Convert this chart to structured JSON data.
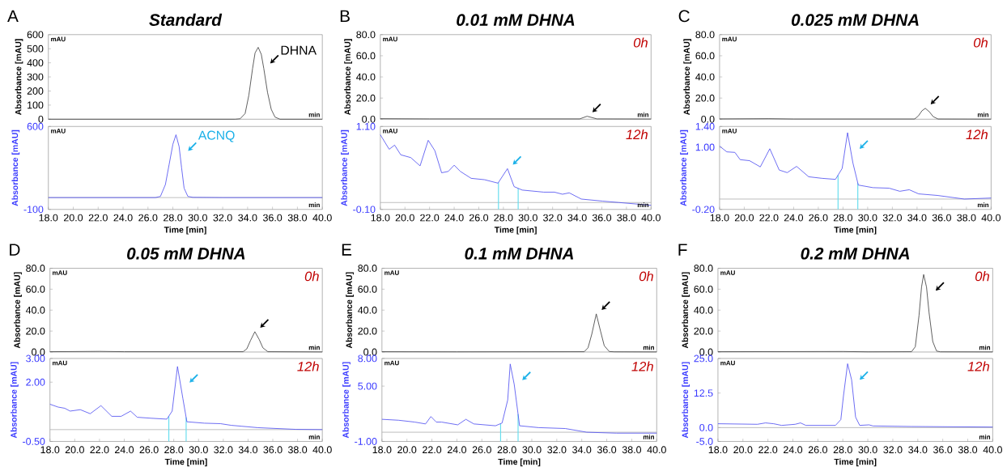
{
  "chart_data": [
    {
      "type": "line",
      "title": "Standard",
      "ylabel": "Absorbance [mAU]",
      "annotations": [
        "A",
        "mAU",
        "min",
        {
          "text": "DHNA",
          "x": 34.85,
          "y": 510
        }
      ],
      "xlim": [
        18,
        40
      ],
      "ylim": [
        0,
        600
      ],
      "yticks": [
        0,
        100,
        200,
        300,
        400,
        500,
        600
      ],
      "tick_labels": "y",
      "series": [
        {
          "color": "#404040",
          "x": [
            18,
            33.0,
            33.4,
            33.8,
            34.1,
            34.4,
            34.6,
            34.85,
            35.1,
            35.3,
            35.6,
            35.9,
            36.2,
            36.6,
            40
          ],
          "values": [
            0,
            0,
            3,
            40,
            170,
            360,
            470,
            510,
            460,
            360,
            190,
            70,
            15,
            0,
            0
          ]
        }
      ]
    },
    {
      "type": "line",
      "xlabel": "Time [min]",
      "ylabel": "Absorbance [mAU]",
      "annotations": [
        "mAU",
        "min",
        {
          "text": "ACNQ",
          "x": 28.25,
          "y": 530
        }
      ],
      "xlim": [
        18,
        40
      ],
      "ylim": [
        -100,
        600
      ],
      "yticks": [
        -100,
        600
      ],
      "xticks": [
        {
          "value": 18,
          "label": "18.0"
        },
        {
          "value": 20,
          "label": "20.0"
        },
        {
          "value": 22,
          "label": "22.0"
        },
        {
          "value": 24,
          "label": "24.0"
        },
        {
          "value": 26,
          "label": "26.0"
        },
        {
          "value": 28,
          "label": "28.0"
        },
        {
          "value": 30,
          "label": "30.0"
        },
        {
          "value": 32,
          "label": "32.0"
        },
        {
          "value": 34,
          "label": "34.0"
        },
        {
          "value": 36,
          "label": "36.0"
        },
        {
          "value": 38,
          "label": "38.0"
        },
        {
          "value": 40,
          "label": "40.0"
        }
      ],
      "ref_lines": [
        {
          "axis": "y",
          "value": 0,
          "color": "#b0b0b0"
        }
      ],
      "series": [
        {
          "color": "#5050f0",
          "x": [
            18,
            26.6,
            27.0,
            27.4,
            27.7,
            28.0,
            28.25,
            28.5,
            28.7,
            28.9,
            29.2,
            29.6,
            32,
            40
          ],
          "values": [
            0,
            0,
            10,
            110,
            280,
            450,
            530,
            430,
            250,
            80,
            10,
            2,
            0,
            0
          ]
        }
      ]
    },
    {
      "type": "line",
      "title": "0.01 mM DHNA",
      "ylabel": "Absorbance [mAU]",
      "annotations": [
        "B",
        "mAU",
        "min",
        "0h"
      ],
      "xlim": [
        18,
        40
      ],
      "ylim": [
        0,
        80
      ],
      "yticks": [
        {
          "value": 0,
          "label": "0.0"
        },
        {
          "value": 20,
          "label": "20.0"
        },
        {
          "value": 40,
          "label": "40.0"
        },
        {
          "value": 60,
          "label": "60.0"
        },
        {
          "value": 80,
          "label": "80.0"
        }
      ],
      "tick_labels": "y",
      "series": [
        {
          "color": "#404040",
          "x": [
            18,
            22,
            28,
            34.2,
            34.8,
            35.6,
            40
          ],
          "values": [
            0.5,
            0.3,
            0.3,
            0.3,
            2.8,
            0.3,
            0.2
          ]
        }
      ]
    },
    {
      "type": "line",
      "xlabel": "Time [min]",
      "ylabel": "Absorbance [mAU]",
      "annotations": [
        "mAU",
        "min",
        "12h"
      ],
      "xlim": [
        18,
        40
      ],
      "ylim": [
        -0.1,
        1.1
      ],
      "yticks": [
        {
          "value": -0.1,
          "label": "-0.10"
        },
        {
          "value": 1.1,
          "label": "1.10"
        }
      ],
      "xticks": [
        {
          "value": 18,
          "label": "18.0"
        },
        {
          "value": 20,
          "label": "20.0"
        },
        {
          "value": 22,
          "label": "22.0"
        },
        {
          "value": 24,
          "label": "24.0"
        },
        {
          "value": 26,
          "label": "26.0"
        },
        {
          "value": 28,
          "label": "28.0"
        },
        {
          "value": 30,
          "label": "30.0"
        },
        {
          "value": 32,
          "label": "32.0"
        },
        {
          "value": 34,
          "label": "34.0"
        },
        {
          "value": 36,
          "label": "36.0"
        },
        {
          "value": 38,
          "label": "38.0"
        },
        {
          "value": 40,
          "label": "40.0"
        }
      ],
      "ref_lines": [
        {
          "axis": "y",
          "value": 0,
          "color": "#b0b0b0"
        },
        {
          "axis": "x",
          "value": 27.6,
          "color": "#66ddee"
        },
        {
          "axis": "x",
          "value": 29.2,
          "color": "#66ddee"
        }
      ],
      "series": [
        {
          "color": "#5050f0",
          "x": [
            18.0,
            18.72,
            19.16,
            19.66,
            20.47,
            21.23,
            21.89,
            22.43,
            22.98,
            23.52,
            24.0,
            24.5,
            25.38,
            26.47,
            27.56,
            28.33,
            28.87,
            29.53,
            31.28,
            32.15,
            32.8,
            33.35,
            34.33,
            36.08,
            37.39,
            40.0
          ],
          "values": [
            0.98,
            0.77,
            0.83,
            0.69,
            0.65,
            0.53,
            0.9,
            0.75,
            0.43,
            0.45,
            0.54,
            0.45,
            0.35,
            0.33,
            0.28,
            0.49,
            0.23,
            0.18,
            0.15,
            0.15,
            0.12,
            0.14,
            0.05,
            0.02,
            0.0,
            -0.04
          ]
        }
      ]
    },
    {
      "type": "line",
      "title": "0.025 mM DHNA",
      "ylabel": "Absorbance [mAU]",
      "annotations": [
        "C",
        "mAU",
        "min",
        "0h"
      ],
      "xlim": [
        18,
        40
      ],
      "ylim": [
        0,
        80
      ],
      "yticks": [
        {
          "value": 0,
          "label": "0.0"
        },
        {
          "value": 20,
          "label": "20.0"
        },
        {
          "value": 40,
          "label": "40.0"
        },
        {
          "value": 60,
          "label": "60.0"
        },
        {
          "value": 80,
          "label": "80.0"
        }
      ],
      "tick_labels": "y",
      "series": [
        {
          "color": "#404040",
          "x": [
            18,
            22,
            24,
            33.8,
            34.1,
            34.4,
            34.67,
            35.0,
            35.3,
            35.7,
            40
          ],
          "values": [
            0.3,
            0.5,
            0.2,
            0.2,
            3,
            8,
            10.3,
            7,
            2.5,
            0.2,
            0.1
          ]
        }
      ]
    },
    {
      "type": "line",
      "xlabel": "Time [min]",
      "ylabel": "Absorbance [mAU]",
      "annotations": [
        "mAU",
        "min",
        "12h"
      ],
      "xlim": [
        18,
        40
      ],
      "ylim": [
        -0.2,
        1.4
      ],
      "yticks": [
        {
          "value": -0.2,
          "label": "-0.20"
        },
        {
          "value": 1.0,
          "label": "1.00"
        },
        {
          "value": 1.4,
          "label": "1.40"
        }
      ],
      "xticks": [
        {
          "value": 18,
          "label": "18.0"
        },
        {
          "value": 20,
          "label": "20.0"
        },
        {
          "value": 22,
          "label": "22.0"
        },
        {
          "value": 24,
          "label": "24.0"
        },
        {
          "value": 26,
          "label": "26.0"
        },
        {
          "value": 28,
          "label": "28.0"
        },
        {
          "value": 30,
          "label": "30.0"
        },
        {
          "value": 32,
          "label": "32.0"
        },
        {
          "value": 34,
          "label": "34.0"
        },
        {
          "value": 36,
          "label": "36.0"
        },
        {
          "value": 38,
          "label": "38.0"
        },
        {
          "value": 40,
          "label": "40.0"
        }
      ],
      "ref_lines": [
        {
          "axis": "y",
          "value": 0,
          "color": "#b0b0b0"
        },
        {
          "axis": "x",
          "value": 27.6,
          "color": "#66ddee"
        },
        {
          "axis": "x",
          "value": 29.2,
          "color": "#66ddee"
        }
      ],
      "series": [
        {
          "color": "#5050f0",
          "x": [
            18.0,
            18.59,
            19.24,
            19.67,
            20.43,
            21.3,
            22.07,
            22.83,
            23.48,
            24.24,
            25.22,
            26.3,
            27.39,
            27.93,
            28.37,
            28.8,
            29.24,
            30.43,
            31.74,
            32.6,
            33.37,
            34.13,
            35.65,
            37.83,
            40.0
          ],
          "values": [
            1.02,
            0.91,
            0.9,
            0.76,
            0.74,
            0.62,
            0.97,
            0.56,
            0.51,
            0.63,
            0.43,
            0.4,
            0.38,
            0.59,
            1.28,
            0.7,
            0.27,
            0.22,
            0.21,
            0.15,
            0.18,
            0.1,
            0.07,
            0.0,
            0.02
          ]
        }
      ]
    },
    {
      "type": "line",
      "title": "0.05 mM DHNA",
      "ylabel": "Absorbance [mAU]",
      "annotations": [
        "D",
        "mAU",
        "min",
        "0h"
      ],
      "xlim": [
        18,
        40
      ],
      "ylim": [
        0,
        80
      ],
      "yticks": [
        {
          "value": 0,
          "label": "0.0"
        },
        {
          "value": 20,
          "label": "20.0"
        },
        {
          "value": 40,
          "label": "40.0"
        },
        {
          "value": 60,
          "label": "60.0"
        },
        {
          "value": 80,
          "label": "80.0"
        }
      ],
      "tick_labels": "y",
      "series": [
        {
          "color": "#404040",
          "x": [
            18,
            22,
            24,
            33.6,
            33.9,
            34.2,
            34.55,
            34.9,
            35.2,
            35.6,
            40
          ],
          "values": [
            0.3,
            0.6,
            0.3,
            0.3,
            3,
            11,
            19.4,
            12,
            4,
            0.3,
            0.1
          ]
        }
      ]
    },
    {
      "type": "line",
      "xlabel": "Time [min]",
      "ylabel": "Absorbance [mAU]",
      "annotations": [
        "mAU",
        "min",
        "12h"
      ],
      "xlim": [
        18,
        40
      ],
      "ylim": [
        -0.5,
        3.0
      ],
      "yticks": [
        {
          "value": -0.5,
          "label": "-0.50"
        },
        {
          "value": 2.0,
          "label": "2.00"
        },
        {
          "value": 3.0,
          "label": "3.00"
        }
      ],
      "xticks": [
        {
          "value": 18,
          "label": "18.0"
        },
        {
          "value": 20,
          "label": "20.0"
        },
        {
          "value": 22,
          "label": "22.0"
        },
        {
          "value": 24,
          "label": "24.0"
        },
        {
          "value": 26,
          "label": "26.0"
        },
        {
          "value": 28,
          "label": "28.0"
        },
        {
          "value": 30,
          "label": "30.0"
        },
        {
          "value": 32,
          "label": "32.0"
        },
        {
          "value": 34,
          "label": "34.0"
        },
        {
          "value": 36,
          "label": "36.0"
        },
        {
          "value": 38,
          "label": "38.0"
        },
        {
          "value": 40,
          "label": "40.0"
        }
      ],
      "ref_lines": [
        {
          "axis": "y",
          "value": 0,
          "color": "#b0b0b0"
        },
        {
          "axis": "x",
          "value": 27.6,
          "color": "#66ddee"
        },
        {
          "axis": "x",
          "value": 29.0,
          "color": "#66ddee"
        }
      ],
      "series": [
        {
          "color": "#5050f0",
          "x": [
            18,
            18.65,
            19.19,
            19.63,
            20.45,
            21.25,
            22.12,
            22.99,
            23.75,
            24.51,
            25.05,
            26.13,
            27.44,
            27.87,
            28.3,
            28.74,
            29.06,
            30.47,
            31.77,
            32.64,
            33.51,
            34.81,
            37.85,
            40.0
          ],
          "values": [
            1.07,
            0.95,
            0.9,
            0.78,
            0.84,
            0.67,
            1.01,
            0.56,
            0.56,
            0.78,
            0.52,
            0.48,
            0.44,
            0.78,
            2.66,
            1.3,
            0.33,
            0.27,
            0.25,
            0.18,
            0.14,
            0.08,
            0.01,
            0.0
          ]
        }
      ]
    },
    {
      "type": "line",
      "title": "0.1 mM DHNA",
      "ylabel": "Absorbance [mAU]",
      "annotations": [
        "E",
        "mAU",
        "min",
        "0h"
      ],
      "xlim": [
        18,
        40
      ],
      "ylim": [
        0,
        80
      ],
      "yticks": [
        {
          "value": 0,
          "label": "0.0"
        },
        {
          "value": 20,
          "label": "20.0"
        },
        {
          "value": 40,
          "label": "40.0"
        },
        {
          "value": 60,
          "label": "60.0"
        },
        {
          "value": 80,
          "label": "80.0"
        }
      ],
      "tick_labels": "y",
      "series": [
        {
          "color": "#404040",
          "x": [
            18,
            24,
            34.2,
            34.5,
            34.8,
            35.16,
            35.5,
            35.8,
            36.2,
            36.6,
            40
          ],
          "values": [
            0.3,
            0.2,
            0.3,
            4,
            17,
            36.4,
            20,
            6,
            0.5,
            0.2,
            0.1
          ]
        }
      ]
    },
    {
      "type": "line",
      "xlabel": "Time [min]",
      "ylabel": "Absorbance [mAU]",
      "annotations": [
        "mAU",
        "min",
        "12h"
      ],
      "xlim": [
        18,
        40
      ],
      "ylim": [
        -1.0,
        8.0
      ],
      "yticks": [
        {
          "value": -1.0,
          "label": "-1.00"
        },
        {
          "value": 5.0,
          "label": "5.00"
        },
        {
          "value": 8.0,
          "label": "8.00"
        }
      ],
      "xticks": [
        {
          "value": 18,
          "label": "18.0"
        },
        {
          "value": 20,
          "label": "20.0"
        },
        {
          "value": 22,
          "label": "22.0"
        },
        {
          "value": 24,
          "label": "24.0"
        },
        {
          "value": 26,
          "label": "26.0"
        },
        {
          "value": 28,
          "label": "28.0"
        },
        {
          "value": 30,
          "label": "30.0"
        },
        {
          "value": 32,
          "label": "32.0"
        },
        {
          "value": 34,
          "label": "34.0"
        },
        {
          "value": 36,
          "label": "36.0"
        },
        {
          "value": 38,
          "label": "38.0"
        },
        {
          "value": 40,
          "label": "40.0"
        }
      ],
      "ref_lines": [
        {
          "axis": "y",
          "value": 0,
          "color": "#b0b0b0"
        },
        {
          "axis": "x",
          "value": 27.5,
          "color": "#66ddee"
        },
        {
          "axis": "x",
          "value": 28.9,
          "color": "#66ddee"
        }
      ],
      "series": [
        {
          "color": "#5050f0",
          "x": [
            18,
            19.33,
            20.63,
            21.49,
            21.92,
            22.35,
            22.78,
            24.07,
            24.72,
            25.36,
            27.09,
            27.62,
            28.07,
            28.27,
            28.59,
            29.02,
            30.53,
            32.68,
            34.4,
            36.77,
            40.0
          ],
          "values": [
            1.4,
            1.3,
            1.1,
            0.9,
            1.7,
            1.1,
            1.1,
            0.8,
            1.4,
            0.9,
            0.7,
            1.0,
            3.5,
            7.4,
            5.2,
            0.7,
            0.5,
            0.4,
            0.0,
            -0.1,
            -0.1
          ]
        }
      ]
    },
    {
      "type": "line",
      "title": "0.2 mM DHNA",
      "ylabel": "Absorbance [mAU]",
      "annotations": [
        "F",
        "mAU",
        "min",
        "0h"
      ],
      "xlim": [
        18,
        40
      ],
      "ylim": [
        0,
        80
      ],
      "yticks": [
        {
          "value": 0,
          "label": "0.0"
        },
        {
          "value": 20,
          "label": "20.0"
        },
        {
          "value": 40,
          "label": "40.0"
        },
        {
          "value": 60,
          "label": "60.0"
        },
        {
          "value": 80,
          "label": "80.0"
        }
      ],
      "tick_labels": "y",
      "series": [
        {
          "color": "#404040",
          "x": [
            18,
            28,
            30,
            33.5,
            33.8,
            34.1,
            34.3,
            34.47,
            34.7,
            34.9,
            35.2,
            35.5,
            35.8,
            40
          ],
          "values": [
            0.3,
            0.5,
            0.2,
            0.3,
            5,
            35,
            62,
            74,
            62,
            38,
            10,
            1,
            0.2,
            0.1
          ]
        }
      ]
    },
    {
      "type": "line",
      "xlabel": "Time [min]",
      "ylabel": "Absorbance [mAU]",
      "annotations": [
        "mAU",
        "min",
        "12h"
      ],
      "xlim": [
        18,
        40
      ],
      "ylim": [
        -5.0,
        25.0
      ],
      "yticks": [
        {
          "value": -5.0,
          "label": "-5.0"
        },
        {
          "value": 0.0,
          "label": "0.0"
        },
        {
          "value": 12.5,
          "label": "12.5"
        },
        {
          "value": 25.0,
          "label": "25.0"
        }
      ],
      "xticks": [
        {
          "value": 18,
          "label": "18.0"
        },
        {
          "value": 20,
          "label": "20.0"
        },
        {
          "value": 22,
          "label": "22.0"
        },
        {
          "value": 24,
          "label": "24.0"
        },
        {
          "value": 26,
          "label": "26.0"
        },
        {
          "value": 28,
          "label": "28.0"
        },
        {
          "value": 30,
          "label": "30.0"
        },
        {
          "value": 32,
          "label": "32.0"
        },
        {
          "value": 34,
          "label": "34.0"
        },
        {
          "value": 36,
          "label": "36.0"
        },
        {
          "value": 38,
          "label": "38.0"
        },
        {
          "value": 40,
          "label": "40.0"
        }
      ],
      "ref_lines": [
        {
          "axis": "y",
          "value": 0,
          "color": "#b0b0b0"
        }
      ],
      "series": [
        {
          "color": "#5050f0",
          "x": [
            18,
            21.16,
            21.81,
            22.46,
            23.1,
            24.18,
            24.61,
            25.04,
            27.41,
            27.84,
            28.05,
            28.38,
            28.7,
            29.02,
            29.35,
            30.1,
            30.42,
            33.44,
            40
          ],
          "values": [
            1.4,
            1.2,
            1.7,
            1.4,
            0.8,
            1.2,
            1.7,
            0.8,
            0.8,
            2.9,
            11.5,
            23.1,
            17.3,
            3.8,
            0.8,
            1.0,
            0.6,
            0.4,
            0.2
          ]
        }
      ]
    }
  ]
}
